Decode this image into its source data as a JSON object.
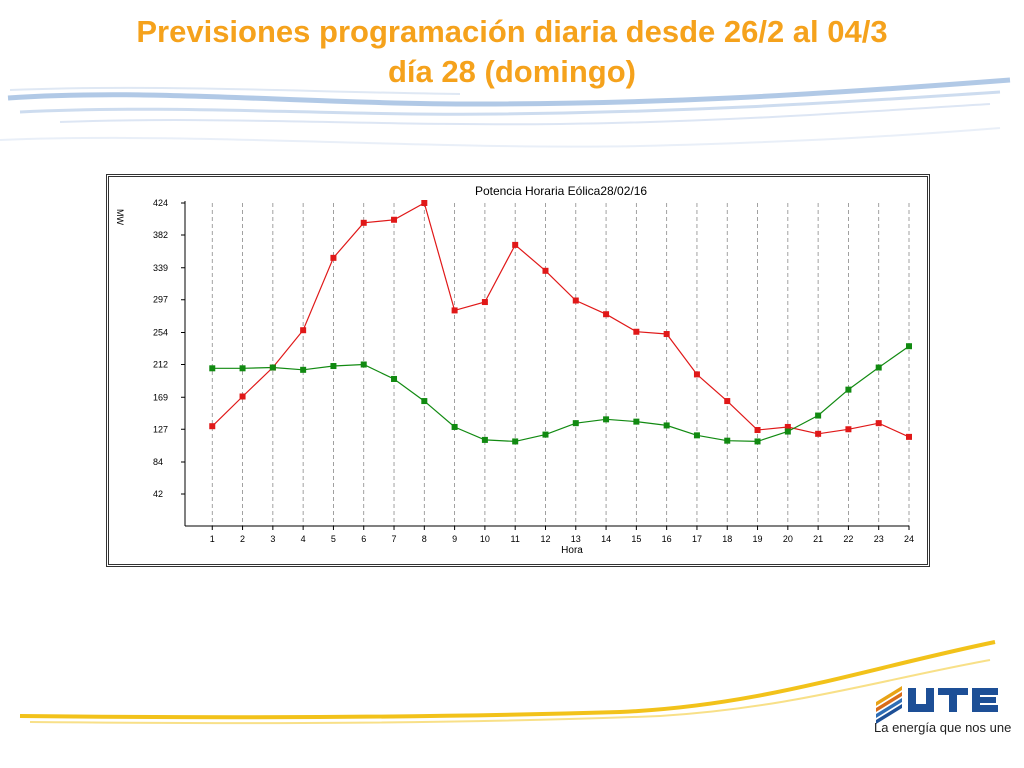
{
  "slide": {
    "title_line1": "Previsiones programación diaria desde 26/2 al 04/3",
    "title_line2": "día 28 (domingo)"
  },
  "colors": {
    "title": "#f5a21c",
    "series_red": "#e01818",
    "series_green": "#118a11",
    "swoosh_blue": "#9dbbe0",
    "swoosh_yellow": "#f2c21a"
  },
  "chart_data": {
    "type": "line",
    "title": "Potencia Horaria Eólica28/02/16",
    "xlabel": "Hora",
    "ylabel": "MW",
    "x": [
      1,
      2,
      3,
      4,
      5,
      6,
      7,
      8,
      9,
      10,
      11,
      12,
      13,
      14,
      15,
      16,
      17,
      18,
      19,
      20,
      21,
      22,
      23,
      24
    ],
    "y_ticks": [
      42,
      84,
      127,
      169,
      212,
      254,
      297,
      339,
      382,
      424
    ],
    "ylim": [
      0,
      424
    ],
    "xlim": [
      0.1,
      24
    ],
    "grid": "vertical dashed",
    "series": [
      {
        "color": "#e01818",
        "values": [
          131,
          170,
          208,
          257,
          352,
          398,
          402,
          424,
          283,
          294,
          369,
          335,
          296,
          278,
          255,
          252,
          199,
          164,
          126,
          130,
          121,
          127,
          135,
          117
        ]
      },
      {
        "color": "#118a11",
        "values": [
          207,
          207,
          208,
          205,
          210,
          212,
          193,
          164,
          130,
          113,
          111,
          120,
          135,
          140,
          137,
          132,
          119,
          112,
          111,
          124,
          145,
          179,
          208,
          236
        ]
      }
    ]
  },
  "brand": {
    "logo_text": "UTE",
    "tagline": "La energía que nos une"
  }
}
